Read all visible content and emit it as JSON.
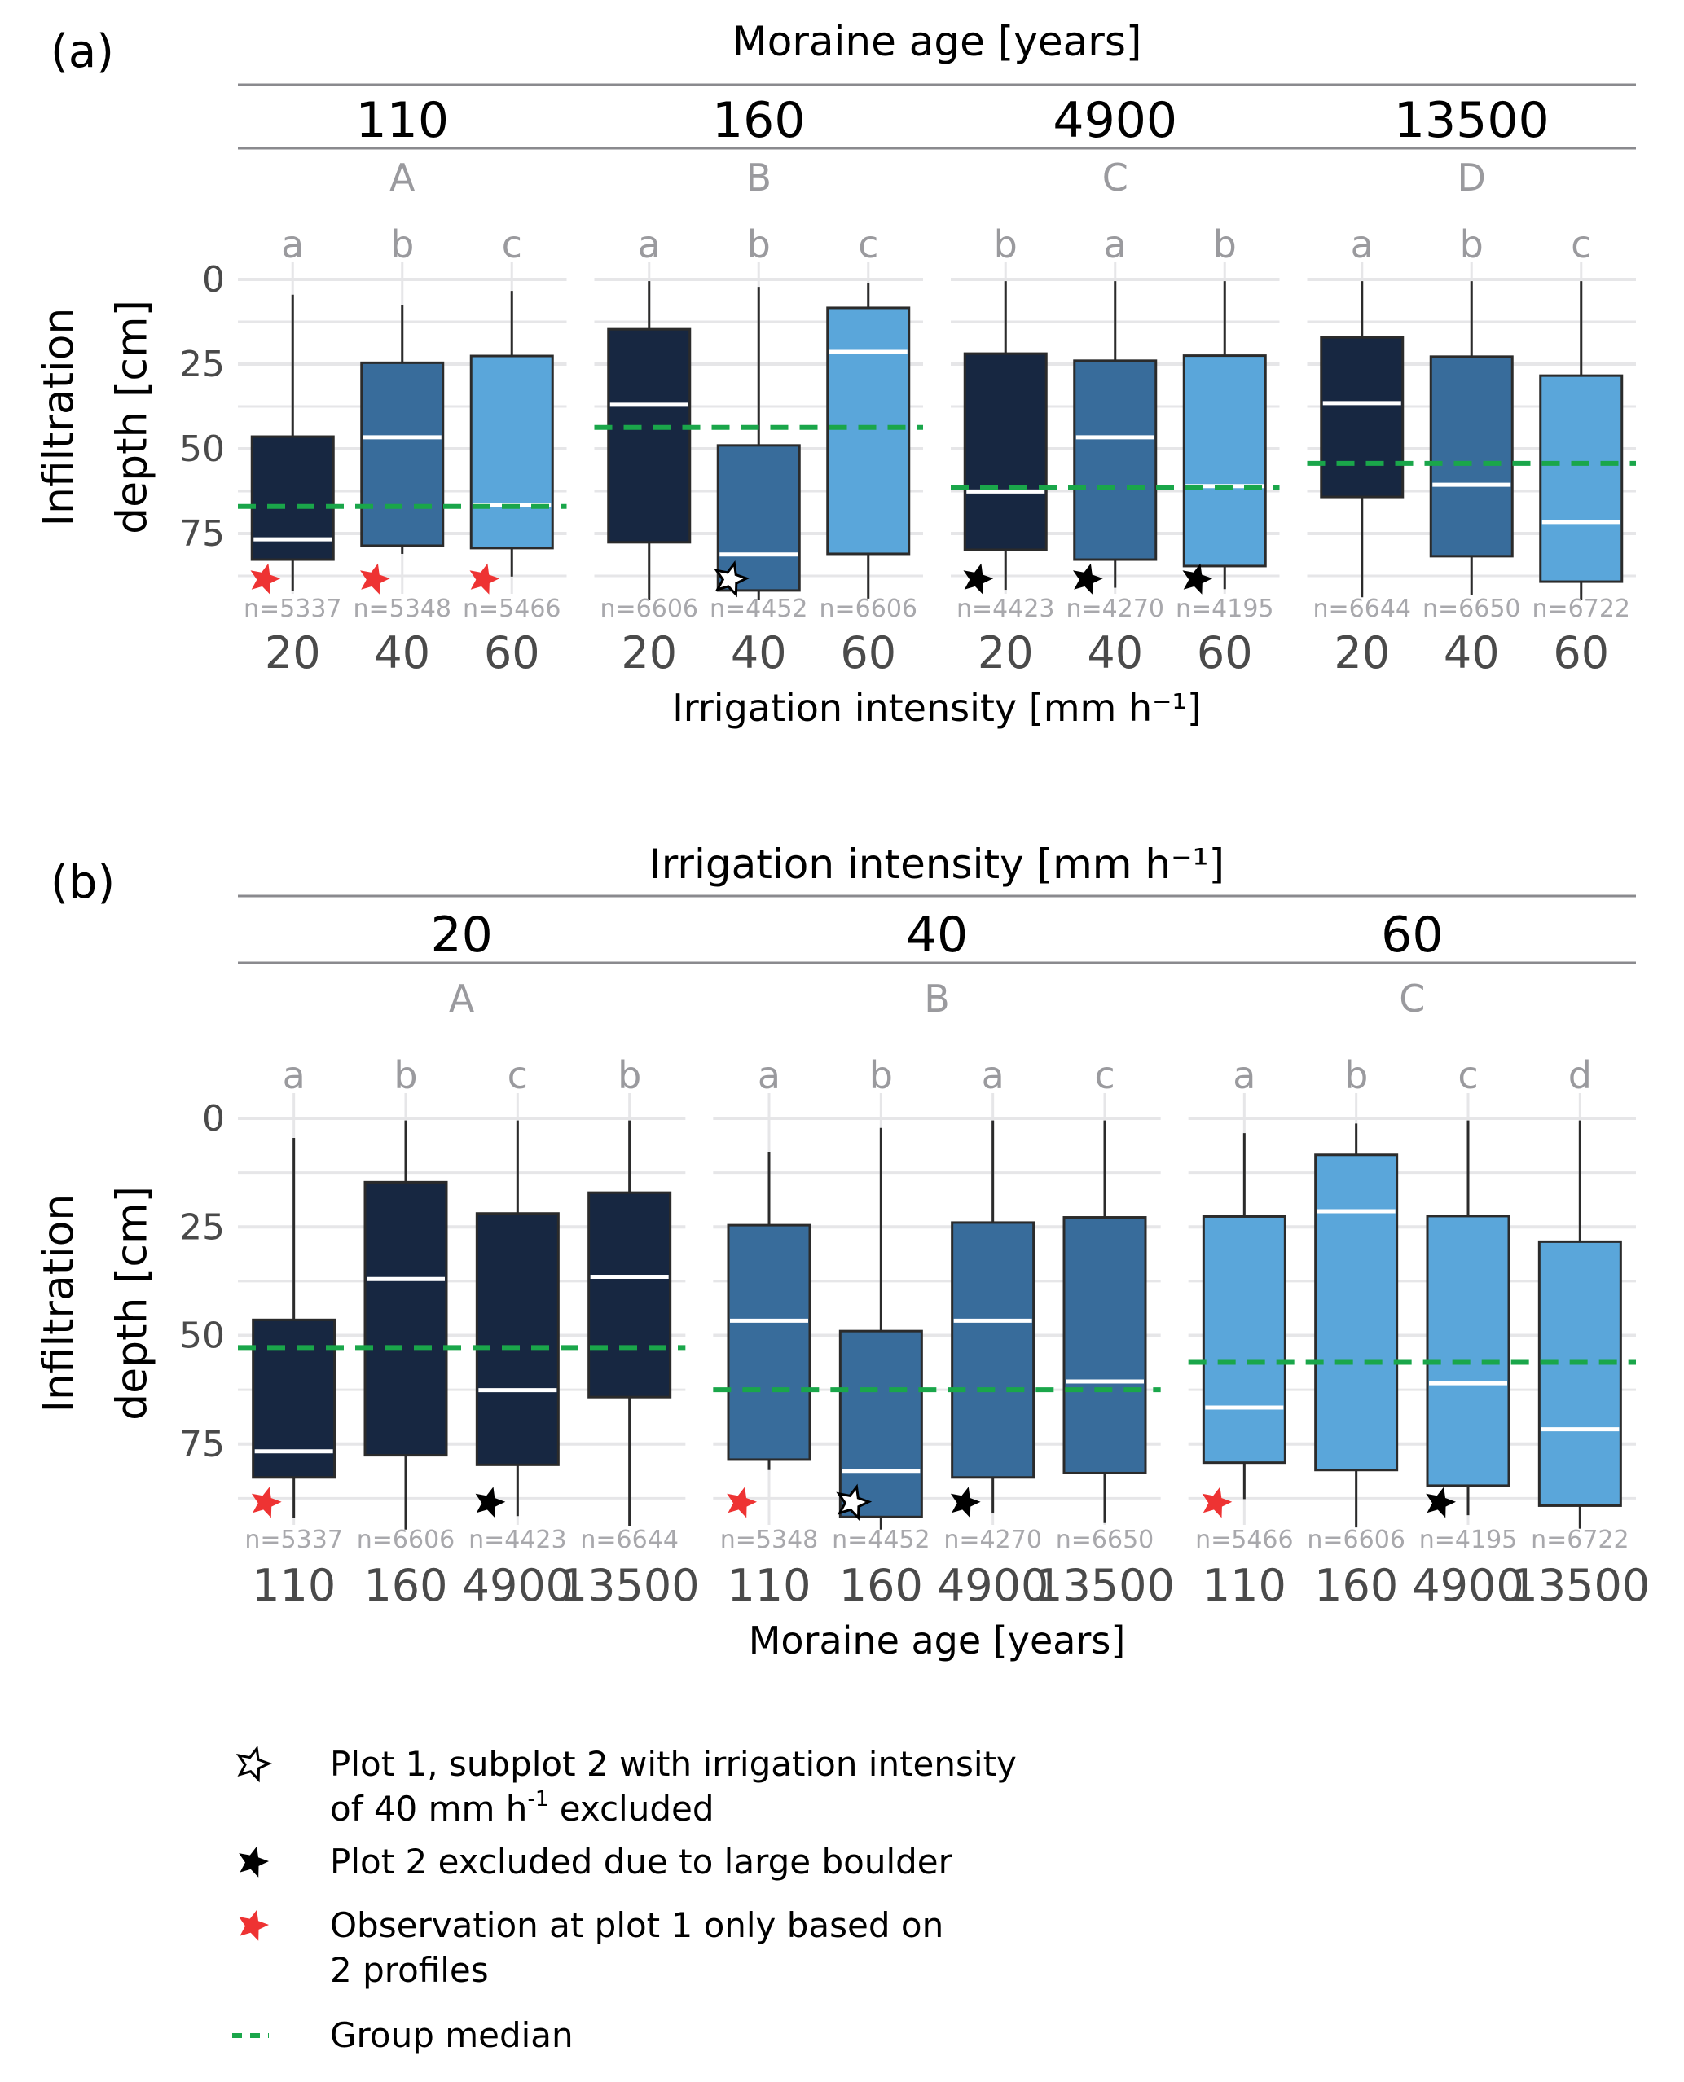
{
  "colors": {
    "fill_20": "#172741",
    "fill_40": "#386c9b",
    "fill_60": "#5aa6da",
    "outline": "#2b2b2b",
    "median": "#ffffff",
    "group_median": "#1aa64a",
    "grid": "#e6e6e8",
    "strip": "#8a8a8e",
    "red_star": "#ee3333",
    "black_star": "#000000",
    "white_star": "#ffffff"
  },
  "chart_data": [
    {
      "type": "box",
      "panel_label": "(a)",
      "title": "Moraine age  [years]",
      "xlabel": "Irrigation intensity [mm h⁻¹]",
      "ylabel_line1": "Infiltration",
      "ylabel_line2": "depth  [cm]",
      "y_reversed": true,
      "ylim": [
        0,
        95
      ],
      "yticks": [
        "0",
        "25",
        "50",
        "75"
      ],
      "ytick_values": [
        0,
        25,
        50,
        75
      ],
      "facets": [
        {
          "strip": "110",
          "group_letter": "A",
          "group_median": 67,
          "boxes": [
            {
              "x": "20",
              "letter": "a",
              "n": "n=5337",
              "fill": "fill_20",
              "whisker_low": 4.5,
              "q1": 46.4,
              "median": 76.7,
              "q3": 82.7,
              "whisker_high": 92,
              "marker": "red"
            },
            {
              "x": "40",
              "letter": "b",
              "n": "n=5348",
              "fill": "fill_40",
              "whisker_low": 7.7,
              "q1": 24.6,
              "median": 46.6,
              "q3": 78.6,
              "whisker_high": 81,
              "marker": "red"
            },
            {
              "x": "60",
              "letter": "c",
              "n": "n=5466",
              "fill": "fill_60",
              "whisker_low": 3.4,
              "q1": 22.6,
              "median": 66.6,
              "q3": 79.3,
              "whisker_high": 87.7,
              "marker": "red"
            }
          ]
        },
        {
          "strip": "160",
          "group_letter": "B",
          "group_median": 43.7,
          "boxes": [
            {
              "x": "20",
              "letter": "a",
              "n": "n=6606",
              "fill": "fill_20",
              "whisker_low": 0.5,
              "q1": 14.7,
              "median": 37,
              "q3": 77.6,
              "whisker_high": 94.7,
              "marker": null
            },
            {
              "x": "40",
              "letter": "b",
              "n": "n=4452",
              "fill": "fill_40",
              "whisker_low": 2.2,
              "q1": 49,
              "median": 81.2,
              "q3": 91.8,
              "whisker_high": 94.7,
              "marker": "white"
            },
            {
              "x": "60",
              "letter": "c",
              "n": "n=6606",
              "fill": "fill_60",
              "whisker_low": 1.2,
              "q1": 8.4,
              "median": 21.4,
              "q3": 81,
              "whisker_high": 94.2,
              "marker": null
            }
          ]
        },
        {
          "strip": "4900",
          "group_letter": "C",
          "group_median": 61.3,
          "boxes": [
            {
              "x": "20",
              "letter": "b",
              "n": "n=4423",
              "fill": "fill_20",
              "whisker_low": 0.5,
              "q1": 21.9,
              "median": 62.6,
              "q3": 79.8,
              "whisker_high": 91.6,
              "marker": "black"
            },
            {
              "x": "40",
              "letter": "a",
              "n": "n=4270",
              "fill": "fill_40",
              "whisker_low": 0.5,
              "q1": 24,
              "median": 46.6,
              "q3": 82.7,
              "whisker_high": 91,
              "marker": "black"
            },
            {
              "x": "60",
              "letter": "b",
              "n": "n=4195",
              "fill": "fill_60",
              "whisker_low": 0.5,
              "q1": 22.5,
              "median": 61,
              "q3": 84.6,
              "whisker_high": 91.4,
              "marker": "black"
            }
          ]
        },
        {
          "strip": "13500",
          "group_letter": "D",
          "group_median": 54.3,
          "boxes": [
            {
              "x": "20",
              "letter": "a",
              "n": "n=6644",
              "fill": "fill_20",
              "whisker_low": 0.5,
              "q1": 17.1,
              "median": 36.5,
              "q3": 64.2,
              "whisker_high": 93.8,
              "marker": null
            },
            {
              "x": "40",
              "letter": "b",
              "n": "n=6650",
              "fill": "fill_40",
              "whisker_low": 0.5,
              "q1": 22.8,
              "median": 60.6,
              "q3": 81.7,
              "whisker_high": 93.2,
              "marker": null
            },
            {
              "x": "60",
              "letter": "c",
              "n": "n=6722",
              "fill": "fill_60",
              "whisker_low": 0.5,
              "q1": 28.4,
              "median": 71.6,
              "q3": 89.2,
              "whisker_high": 94.5,
              "marker": null
            }
          ]
        }
      ]
    },
    {
      "type": "box",
      "panel_label": "(b)",
      "title": "Irrigation intensity [mm h⁻¹]",
      "xlabel": "Moraine age  [years]",
      "ylabel_line1": "Infiltration",
      "ylabel_line2": "depth  [cm]",
      "y_reversed": true,
      "ylim": [
        0,
        95
      ],
      "yticks": [
        "0",
        "25",
        "50",
        "75"
      ],
      "ytick_values": [
        0,
        25,
        50,
        75
      ],
      "facets": [
        {
          "strip": "20",
          "group_letter": "A",
          "group_median": 52.8,
          "boxes": [
            {
              "x": "110",
              "letter": "a",
              "n": "n=5337",
              "fill": "fill_20",
              "whisker_low": 4.5,
              "q1": 46.4,
              "median": 76.7,
              "q3": 82.7,
              "whisker_high": 92,
              "marker": "red"
            },
            {
              "x": "160",
              "letter": "b",
              "n": "n=6606",
              "fill": "fill_20",
              "whisker_low": 0.5,
              "q1": 14.7,
              "median": 37,
              "q3": 77.6,
              "whisker_high": 94.7,
              "marker": null
            },
            {
              "x": "4900",
              "letter": "c",
              "n": "n=4423",
              "fill": "fill_20",
              "whisker_low": 0.5,
              "q1": 21.9,
              "median": 62.6,
              "q3": 79.8,
              "whisker_high": 91.6,
              "marker": "black"
            },
            {
              "x": "13500",
              "letter": "b",
              "n": "n=6644",
              "fill": "fill_20",
              "whisker_low": 0.5,
              "q1": 17.1,
              "median": 36.5,
              "q3": 64.2,
              "whisker_high": 93.8,
              "marker": null
            }
          ]
        },
        {
          "strip": "40",
          "group_letter": "B",
          "group_median": 62.5,
          "boxes": [
            {
              "x": "110",
              "letter": "a",
              "n": "n=5348",
              "fill": "fill_40",
              "whisker_low": 7.7,
              "q1": 24.6,
              "median": 46.6,
              "q3": 78.6,
              "whisker_high": 81,
              "marker": "red"
            },
            {
              "x": "160",
              "letter": "b",
              "n": "n=4452",
              "fill": "fill_40",
              "whisker_low": 2.2,
              "q1": 49,
              "median": 81.2,
              "q3": 91.8,
              "whisker_high": 94.7,
              "marker": "white"
            },
            {
              "x": "4900",
              "letter": "a",
              "n": "n=4270",
              "fill": "fill_40",
              "whisker_low": 0.5,
              "q1": 24,
              "median": 46.6,
              "q3": 82.7,
              "whisker_high": 91,
              "marker": "black"
            },
            {
              "x": "13500",
              "letter": "c",
              "n": "n=6650",
              "fill": "fill_40",
              "whisker_low": 0.5,
              "q1": 22.8,
              "median": 60.6,
              "q3": 81.7,
              "whisker_high": 93.2,
              "marker": null
            }
          ]
        },
        {
          "strip": "60",
          "group_letter": "C",
          "group_median": 56.2,
          "boxes": [
            {
              "x": "110",
              "letter": "a",
              "n": "n=5466",
              "fill": "fill_60",
              "whisker_low": 3.4,
              "q1": 22.6,
              "median": 66.6,
              "q3": 79.3,
              "whisker_high": 87.7,
              "marker": "red"
            },
            {
              "x": "160",
              "letter": "b",
              "n": "n=6606",
              "fill": "fill_60",
              "whisker_low": 1.2,
              "q1": 8.4,
              "median": 21.4,
              "q3": 81,
              "whisker_high": 94.2,
              "marker": null
            },
            {
              "x": "4900",
              "letter": "c",
              "n": "n=4195",
              "fill": "fill_60",
              "whisker_low": 0.5,
              "q1": 22.5,
              "median": 61,
              "q3": 84.6,
              "whisker_high": 91.4,
              "marker": "black"
            },
            {
              "x": "13500",
              "letter": "d",
              "n": "n=6722",
              "fill": "fill_60",
              "whisker_low": 0.5,
              "q1": 28.4,
              "median": 71.6,
              "q3": 89.2,
              "whisker_high": 94.5,
              "marker": null
            }
          ]
        }
      ]
    }
  ],
  "legend": {
    "items": [
      {
        "marker": "white",
        "line1": "Plot 1, subplot 2 with irrigation intensity",
        "line2_pre": "of 40 mm h",
        "line2_sup": "-1",
        "line2_post": " excluded"
      },
      {
        "marker": "black",
        "line1": "Plot 2 excluded due to large boulder"
      },
      {
        "marker": "red",
        "line1": "Observation at plot 1 only based on",
        "line2": "2 profiles"
      },
      {
        "marker": "dash",
        "line1": "Group median"
      }
    ]
  }
}
